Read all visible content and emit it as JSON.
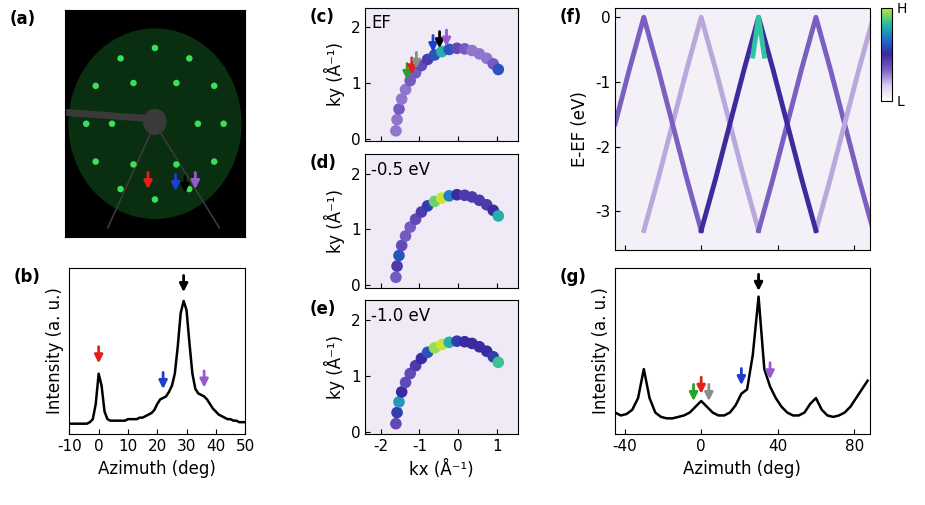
{
  "chart_data": [
    {
      "type": "diffraction",
      "title": "(a)",
      "x": [
        0,
        0.4,
        0.69,
        0.8,
        0.69,
        0.4,
        0,
        -0.4,
        -0.69,
        -0.8,
        -0.69,
        -0.4,
        0.5,
        0.25,
        -0.25,
        -0.5,
        -0.25,
        0.25
      ],
      "y": [
        0.8,
        0.69,
        0.4,
        0,
        -0.4,
        -0.69,
        -0.8,
        -0.69,
        -0.4,
        0,
        0.4,
        0.69,
        0,
        0.43,
        0.43,
        0,
        -0.43,
        -0.43
      ],
      "color": "#3be05a",
      "marker": "o",
      "xlim": [
        -1.05,
        1.05
      ],
      "ylim": [
        -1.2,
        1.2
      ],
      "xticks": [],
      "yticks": [],
      "tick_labels": false,
      "arrows": [
        {
          "x": -0.08,
          "y": -0.72,
          "color": "#e3201b"
        },
        {
          "x": 0.24,
          "y": -0.74,
          "color": "#1c3fd1"
        },
        {
          "x": 0.35,
          "y": -0.76,
          "color": "#000000"
        },
        {
          "x": 0.47,
          "y": -0.72,
          "color": "#9b59d0"
        }
      ]
    },
    {
      "type": "line",
      "title": "(b)",
      "x": [
        -10,
        -9,
        -8,
        -7,
        -6,
        -5,
        -4,
        -3,
        -2,
        -1,
        0,
        1,
        2,
        3,
        4,
        5,
        6,
        7,
        8,
        9,
        10,
        11,
        12,
        13,
        14,
        15,
        16,
        17,
        18,
        19,
        20,
        21,
        22,
        23,
        24,
        25,
        26,
        27,
        28,
        29,
        30,
        31,
        32,
        33,
        34,
        35,
        36,
        37,
        38,
        39,
        40,
        41,
        42,
        43,
        44,
        45,
        46,
        47,
        48,
        49,
        50
      ],
      "values": [
        0.17,
        0.17,
        0.17,
        0.17,
        0.17,
        0.17,
        0.17,
        0.18,
        0.2,
        0.3,
        0.5,
        0.42,
        0.25,
        0.2,
        0.19,
        0.19,
        0.19,
        0.19,
        0.19,
        0.19,
        0.2,
        0.2,
        0.2,
        0.2,
        0.21,
        0.21,
        0.22,
        0.23,
        0.24,
        0.26,
        0.3,
        0.33,
        0.34,
        0.35,
        0.38,
        0.42,
        0.5,
        0.68,
        0.9,
        0.98,
        0.92,
        0.7,
        0.5,
        0.4,
        0.37,
        0.36,
        0.35,
        0.33,
        0.3,
        0.27,
        0.25,
        0.23,
        0.22,
        0.21,
        0.2,
        0.2,
        0.19,
        0.19,
        0.18,
        0.18,
        0.18
      ],
      "color": "#000000",
      "xlim": [
        -10,
        50
      ],
      "ylim": [
        0.1,
        1.2
      ],
      "xticks": [
        -10,
        0,
        10,
        20,
        30,
        40,
        50
      ],
      "yticks": [],
      "tick_labels": "x",
      "xlabel": "Azimuth (deg)",
      "ylabel": "Intensity (a. u.)",
      "arrows": [
        {
          "x": 0,
          "y": 0.55,
          "color": "#e3201b"
        },
        {
          "x": 22,
          "y": 0.38,
          "color": "#1c3fd1"
        },
        {
          "x": 29,
          "y": 1.02,
          "color": "#000000"
        },
        {
          "x": 36,
          "y": 0.39,
          "color": "#9b59d0"
        }
      ]
    },
    {
      "type": "map",
      "title": "(c)",
      "subtitle": "EF",
      "x": [
        -1.61,
        -1.58,
        -1.53,
        -1.46,
        -1.36,
        -1.24,
        -1.1,
        -0.95,
        -0.79,
        -0.61,
        -0.42,
        -0.23,
        -0.03,
        0.17,
        0.36,
        0.55,
        0.74,
        0.91,
        1.04
      ],
      "y": [
        0.14,
        0.34,
        0.53,
        0.71,
        0.88,
        1.04,
        1.18,
        1.31,
        1.42,
        1.5,
        1.56,
        1.6,
        1.62,
        1.61,
        1.58,
        1.52,
        1.44,
        1.34,
        1.24
      ],
      "intensity": [
        0.3,
        0.3,
        0.35,
        0.3,
        0.3,
        0.35,
        0.35,
        0.4,
        0.45,
        0.6,
        0.8,
        0.6,
        0.4,
        0.35,
        0.3,
        0.3,
        0.3,
        0.35,
        0.6
      ],
      "xlim": [
        -2.4,
        1.55
      ],
      "ylim": [
        -0.05,
        2.35
      ],
      "xticks": [
        -2,
        -1,
        0,
        1
      ],
      "yticks": [
        0,
        1,
        2
      ],
      "tick_labels": "y",
      "ylabel": "ky (Å⁻¹)",
      "arrows": [
        {
          "x": -1.32,
          "y": 1.0,
          "color": "#2ca02c"
        },
        {
          "x": -1.2,
          "y": 1.1,
          "color": "#e3201b"
        },
        {
          "x": -1.08,
          "y": 1.2,
          "color": "#8c8c8c"
        },
        {
          "x": -0.65,
          "y": 1.5,
          "color": "#1c3fd1"
        },
        {
          "x": -0.48,
          "y": 1.57,
          "color": "#000000"
        },
        {
          "x": -0.3,
          "y": 1.6,
          "color": "#9b59d0"
        }
      ]
    },
    {
      "type": "map",
      "title": "(d)",
      "subtitle": "-0.5 eV",
      "x": [
        -1.61,
        -1.58,
        -1.53,
        -1.46,
        -1.36,
        -1.24,
        -1.1,
        -0.95,
        -0.79,
        -0.61,
        -0.42,
        -0.23,
        -0.03,
        0.17,
        0.36,
        0.55,
        0.74,
        0.91,
        1.04
      ],
      "y": [
        0.14,
        0.34,
        0.53,
        0.71,
        0.88,
        1.04,
        1.18,
        1.31,
        1.42,
        1.5,
        1.56,
        1.6,
        1.62,
        1.61,
        1.58,
        1.52,
        1.44,
        1.34,
        1.24
      ],
      "intensity": [
        0.35,
        0.45,
        0.6,
        0.4,
        0.35,
        0.35,
        0.4,
        0.45,
        0.55,
        0.9,
        1.0,
        0.7,
        0.5,
        0.45,
        0.45,
        0.45,
        0.45,
        0.5,
        0.8
      ],
      "xlim": [
        -2.4,
        1.55
      ],
      "ylim": [
        -0.05,
        2.35
      ],
      "xticks": [
        -2,
        -1,
        0,
        1
      ],
      "yticks": [
        0,
        1,
        2
      ],
      "tick_labels": "y",
      "ylabel": "ky (Å⁻¹)"
    },
    {
      "type": "map",
      "title": "(e)",
      "subtitle": "-1.0 eV",
      "x": [
        -1.61,
        -1.58,
        -1.53,
        -1.46,
        -1.36,
        -1.24,
        -1.1,
        -0.95,
        -0.79,
        -0.61,
        -0.42,
        -0.23,
        -0.03,
        0.17,
        0.36,
        0.55,
        0.74,
        0.91,
        1.04
      ],
      "y": [
        0.14,
        0.34,
        0.53,
        0.71,
        0.88,
        1.04,
        1.18,
        1.31,
        1.42,
        1.5,
        1.56,
        1.6,
        1.62,
        1.61,
        1.58,
        1.52,
        1.44,
        1.34,
        1.24
      ],
      "intensity": [
        0.4,
        0.55,
        0.75,
        0.5,
        0.4,
        0.4,
        0.45,
        0.5,
        0.6,
        0.95,
        1.0,
        0.8,
        0.55,
        0.5,
        0.5,
        0.5,
        0.5,
        0.55,
        0.85
      ],
      "xlim": [
        -2.4,
        1.55
      ],
      "ylim": [
        -0.05,
        2.35
      ],
      "xticks": [
        -2,
        -1,
        0,
        1
      ],
      "yticks": [
        0,
        1,
        2
      ],
      "xlabel": "kx (Å⁻¹)",
      "ylabel": "ky (Å⁻¹)"
    },
    {
      "type": "bands",
      "title": "(f)",
      "series": [
        {
          "color": "#b9a8dc",
          "x": [
            -30,
            -22.5,
            -15,
            -7.5,
            0,
            7.5,
            15,
            22.5,
            30
          ],
          "values": [
            -3.3,
            -2.5,
            -1.65,
            -0.8,
            0,
            -0.8,
            -1.65,
            -2.5,
            -3.3
          ]
        },
        {
          "color": "#7a5fc0",
          "x": [
            -45,
            -37.5,
            -30,
            -22.5,
            -15,
            -7.5,
            0
          ],
          "values": [
            -1.65,
            -0.8,
            0,
            -0.8,
            -1.65,
            -2.5,
            -3.3
          ]
        },
        {
          "color": "#7a5fc0",
          "x": [
            30,
            37.5,
            45,
            52.5,
            60,
            67.5,
            75,
            82.5,
            90
          ],
          "values": [
            -3.3,
            -2.5,
            -1.65,
            -0.8,
            0,
            -0.8,
            -1.65,
            -2.5,
            -3.3
          ]
        },
        {
          "color": "#b9a8dc",
          "x": [
            60,
            67.5,
            75,
            82.5,
            90
          ],
          "values": [
            -3.3,
            -2.5,
            -1.65,
            -0.8,
            0
          ]
        },
        {
          "color": "#3d2a9c",
          "x": [
            0,
            7.5,
            15,
            22.5,
            30,
            37.5,
            45,
            52.5,
            60
          ],
          "values": [
            -3.3,
            -2.5,
            -1.65,
            -0.8,
            0,
            -0.8,
            -1.65,
            -2.5,
            -3.3
          ]
        },
        {
          "color": "#2ec4a0",
          "x": [
            27,
            30,
            33
          ],
          "values": [
            -0.6,
            0,
            -0.6
          ]
        }
      ],
      "xlim": [
        -45,
        88
      ],
      "ylim": [
        -3.6,
        0.15
      ],
      "xticks": [
        -40,
        0,
        40,
        80
      ],
      "yticks": [
        -3,
        -2,
        -1,
        0
      ],
      "tick_labels": "y",
      "ylabel": "E-EF (eV)",
      "colorbar": {
        "range": [
          0,
          1
        ],
        "ticks": [
          {
            "value": 0,
            "label": "L"
          },
          {
            "value": 1,
            "label": "H"
          }
        ]
      }
    },
    {
      "type": "line",
      "title": "(g)",
      "x": [
        -45,
        -42,
        -39,
        -36,
        -33,
        -30,
        -27,
        -24,
        -21,
        -18,
        -15,
        -12,
        -9,
        -6,
        -3,
        0,
        3,
        6,
        9,
        12,
        15,
        18,
        21,
        24,
        27,
        30,
        33,
        36,
        39,
        42,
        45,
        48,
        51,
        54,
        57,
        60,
        63,
        66,
        69,
        72,
        75,
        78,
        81,
        84,
        87
      ],
      "values": [
        0.2,
        0.18,
        0.19,
        0.22,
        0.3,
        0.5,
        0.3,
        0.2,
        0.17,
        0.16,
        0.16,
        0.17,
        0.18,
        0.2,
        0.24,
        0.28,
        0.24,
        0.2,
        0.18,
        0.18,
        0.2,
        0.25,
        0.33,
        0.36,
        0.6,
        1.0,
        0.5,
        0.38,
        0.3,
        0.24,
        0.2,
        0.18,
        0.18,
        0.2,
        0.26,
        0.3,
        0.22,
        0.18,
        0.17,
        0.18,
        0.2,
        0.24,
        0.3,
        0.36,
        0.42
      ],
      "color": "#000000",
      "xlim": [
        -45,
        88
      ],
      "ylim": [
        0.05,
        1.2
      ],
      "xticks": [
        -40,
        0,
        40,
        80
      ],
      "yticks": [],
      "tick_labels": "x",
      "xlabel": "Azimuth (deg)",
      "ylabel": "Intensity (a. u.)",
      "arrows": [
        {
          "x": -4,
          "y": 0.26,
          "color": "#2ca02c"
        },
        {
          "x": 0,
          "y": 0.31,
          "color": "#e3201b"
        },
        {
          "x": 4,
          "y": 0.26,
          "color": "#8c8c8c"
        },
        {
          "x": 21,
          "y": 0.37,
          "color": "#1c3fd1"
        },
        {
          "x": 30,
          "y": 1.02,
          "color": "#000000"
        },
        {
          "x": 36,
          "y": 0.41,
          "color": "#9b59d0"
        }
      ]
    }
  ]
}
